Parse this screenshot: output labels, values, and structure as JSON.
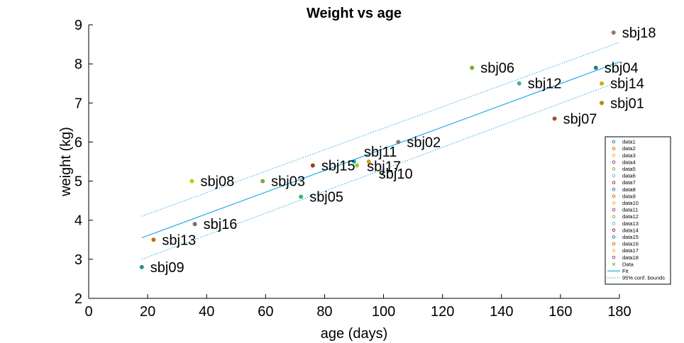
{
  "chart_data": {
    "type": "scatter",
    "title": "Weight vs age",
    "xlabel": "age (days)",
    "ylabel": "weight (kg)",
    "xlim": [
      0,
      180
    ],
    "ylim": [
      2,
      9
    ],
    "xticks": [
      0,
      20,
      40,
      60,
      80,
      100,
      120,
      140,
      160,
      180
    ],
    "yticks": [
      2,
      3,
      4,
      5,
      6,
      7,
      8,
      9
    ],
    "grid": false,
    "legend_position": "bottom-right",
    "points": [
      {
        "label": "sbj01",
        "series": "data1",
        "x": 174,
        "y": 7.0,
        "color": "#b8860b"
      },
      {
        "label": "sbj02",
        "series": "data2",
        "x": 105,
        "y": 6.0,
        "color": "#7d7d7d"
      },
      {
        "label": "sbj03",
        "series": "data3",
        "x": 59,
        "y": 5.0,
        "color": "#77ac30"
      },
      {
        "label": "sbj04",
        "series": "data4",
        "x": 172,
        "y": 7.9,
        "color": "#2e7d7d"
      },
      {
        "label": "sbj05",
        "series": "data5",
        "x": 72,
        "y": 4.6,
        "color": "#3cb371"
      },
      {
        "label": "sbj06",
        "series": "data6",
        "x": 130,
        "y": 7.9,
        "color": "#77ac30"
      },
      {
        "label": "sbj07",
        "series": "data7",
        "x": 158,
        "y": 6.6,
        "color": "#a0522d"
      },
      {
        "label": "sbj08",
        "series": "data8",
        "x": 35,
        "y": 5.0,
        "color": "#c8c800"
      },
      {
        "label": "sbj09",
        "series": "data9",
        "x": 18,
        "y": 2.8,
        "color": "#2e8b8b"
      },
      {
        "label": "sbj10",
        "series": "data10",
        "x": 95,
        "y": 5.5,
        "color": "#d4a017"
      },
      {
        "label": "sbj11",
        "series": "data11",
        "x": 90,
        "y": 5.5,
        "color": "#20b2aa"
      },
      {
        "label": "sbj12",
        "series": "data12",
        "x": 146,
        "y": 7.5,
        "color": "#40b0a0"
      },
      {
        "label": "sbj13",
        "series": "data13",
        "x": 22,
        "y": 3.5,
        "color": "#cc6600"
      },
      {
        "label": "sbj14",
        "series": "data14",
        "x": 174,
        "y": 7.5,
        "color": "#c8b400"
      },
      {
        "label": "sbj15",
        "series": "data15",
        "x": 76,
        "y": 5.4,
        "color": "#8b4513"
      },
      {
        "label": "sbj16",
        "series": "data16",
        "x": 36,
        "y": 3.9,
        "color": "#707070"
      },
      {
        "label": "sbj17",
        "series": "data17",
        "x": 91,
        "y": 5.4,
        "color": "#9acd32"
      },
      {
        "label": "sbj18",
        "series": "data18",
        "x": 178,
        "y": 8.8,
        "color": "#8c7a6b"
      }
    ],
    "fit": {
      "name": "Fit",
      "color": "#29aee6",
      "x": [
        18,
        180
      ],
      "y": [
        3.55,
        8.05
      ]
    },
    "bounds": {
      "name": "95% conf. bounds",
      "color": "#29aee6",
      "upper": {
        "x": [
          18,
          180
        ],
        "y": [
          4.1,
          8.55
        ]
      },
      "lower": {
        "x": [
          18,
          180
        ],
        "y": [
          3.0,
          7.55
        ]
      }
    },
    "legend": [
      {
        "label": "data1",
        "color": "#0072bd",
        "marker": "circle"
      },
      {
        "label": "data2",
        "color": "#d95319",
        "marker": "circle"
      },
      {
        "label": "data3",
        "color": "#edb120",
        "marker": "circle"
      },
      {
        "label": "data4",
        "color": "#7e2f8e",
        "marker": "circle"
      },
      {
        "label": "data5",
        "color": "#77ac30",
        "marker": "circle"
      },
      {
        "label": "data6",
        "color": "#4dbeee",
        "marker": "circle"
      },
      {
        "label": "data7",
        "color": "#a2142f",
        "marker": "circle"
      },
      {
        "label": "data8",
        "color": "#0072bd",
        "marker": "circle"
      },
      {
        "label": "data9",
        "color": "#d95319",
        "marker": "circle"
      },
      {
        "label": "data10",
        "color": "#edb120",
        "marker": "circle"
      },
      {
        "label": "data11",
        "color": "#7e2f8e",
        "marker": "circle"
      },
      {
        "label": "data12",
        "color": "#77ac30",
        "marker": "circle"
      },
      {
        "label": "data13",
        "color": "#4dbeee",
        "marker": "circle"
      },
      {
        "label": "data14",
        "color": "#a2142f",
        "marker": "circle"
      },
      {
        "label": "data15",
        "color": "#0072bd",
        "marker": "circle"
      },
      {
        "label": "data16",
        "color": "#d95319",
        "marker": "circle"
      },
      {
        "label": "data17",
        "color": "#edb120",
        "marker": "circle"
      },
      {
        "label": "data18",
        "color": "#7e2f8e",
        "marker": "circle"
      },
      {
        "label": "Data",
        "color": "#77ac30",
        "marker": "x"
      },
      {
        "label": "Fit",
        "color": "#29aee6",
        "marker": "line"
      },
      {
        "label": "95% conf. bounds",
        "color": "#29aee6",
        "marker": "dotted"
      }
    ]
  }
}
